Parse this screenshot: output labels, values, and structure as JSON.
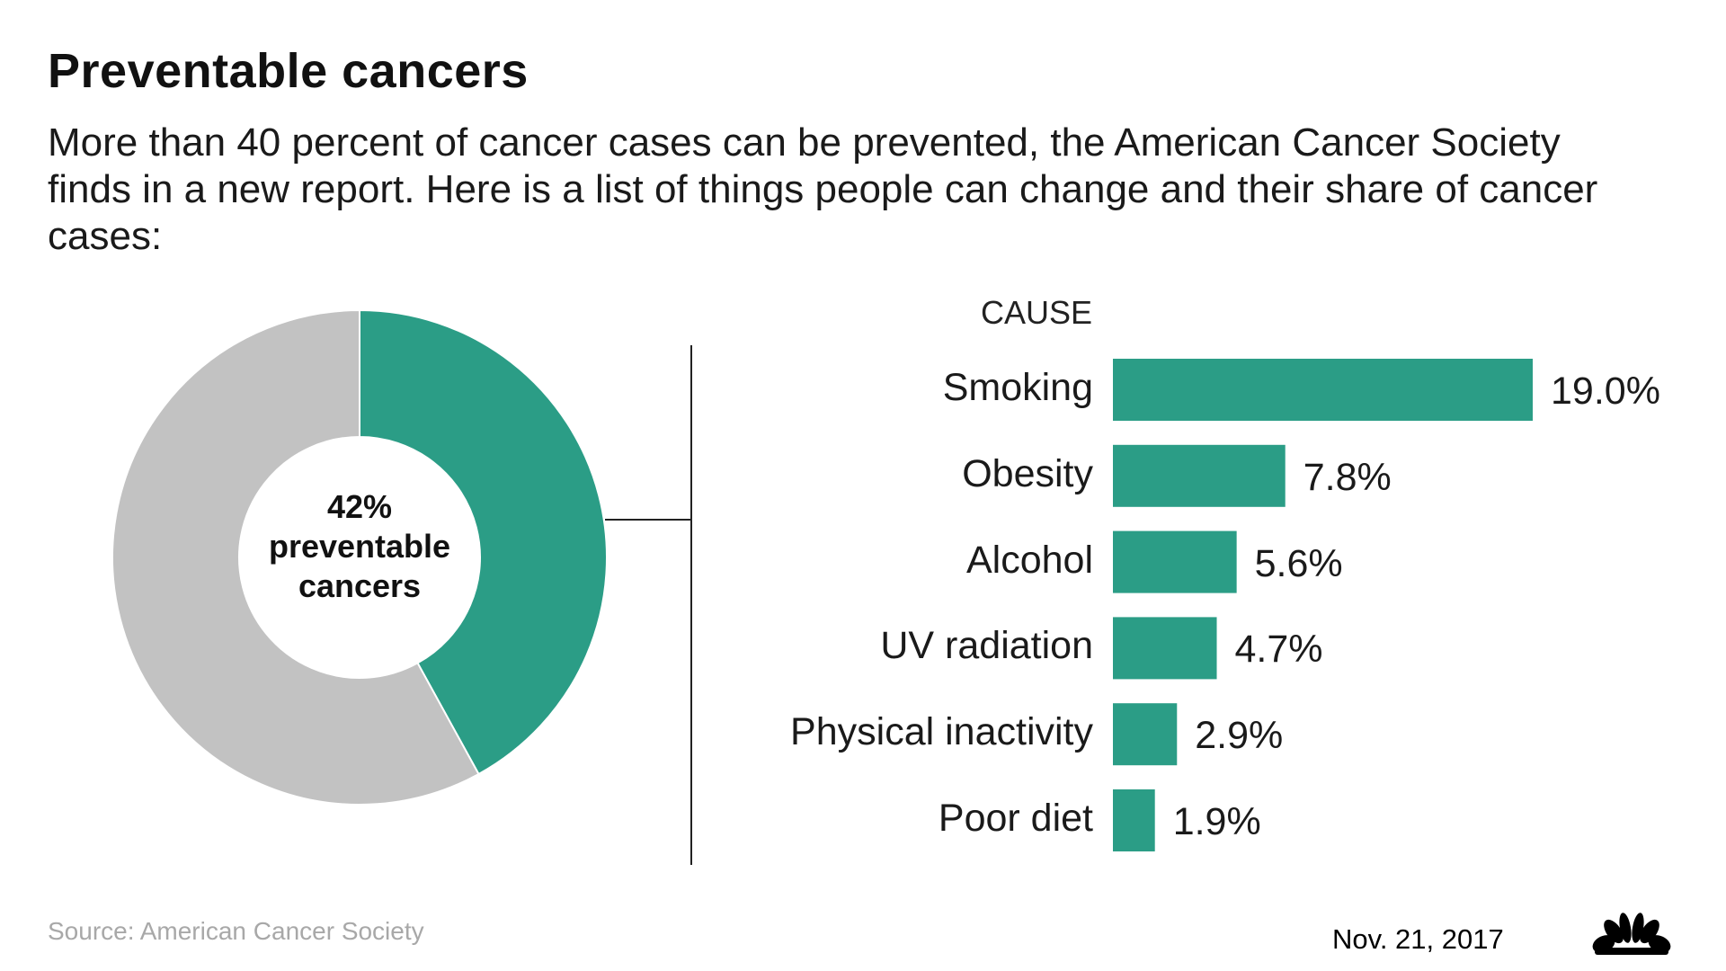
{
  "title": "Preventable cancers",
  "subtitle": "More than 40 percent of cancer cases can be prevented, the American Cancer Society finds in a new report. Here is a list of things people can change and their share of cancer cases:",
  "source": "Source: American Cancer Society",
  "date": "Nov. 21, 2017",
  "logo": "NBC peacock",
  "colors": {
    "accent": "#2b9d86",
    "remainder": "#c2c2c2"
  },
  "chart_data": [
    {
      "type": "pie",
      "style": "donut",
      "center_label": {
        "value": "42%",
        "line1": "preventable",
        "line2": "cancers"
      },
      "slices": [
        {
          "label": "preventable",
          "value": 42,
          "color": "#2b9d86"
        },
        {
          "label": "other",
          "value": 58,
          "color": "#c2c2c2"
        }
      ]
    },
    {
      "type": "bar",
      "orientation": "horizontal",
      "category_header": "CAUSE",
      "categories": [
        "Smoking",
        "Obesity",
        "Alcohol",
        "UV radiation",
        "Physical inactivity",
        "Poor diet"
      ],
      "values": [
        19.0,
        7.8,
        5.6,
        4.7,
        2.9,
        1.9
      ],
      "value_labels": [
        "19.0%",
        "7.8%",
        "5.6%",
        "4.7%",
        "2.9%",
        "1.9%"
      ],
      "color": "#2b9d86",
      "grid": false
    }
  ]
}
